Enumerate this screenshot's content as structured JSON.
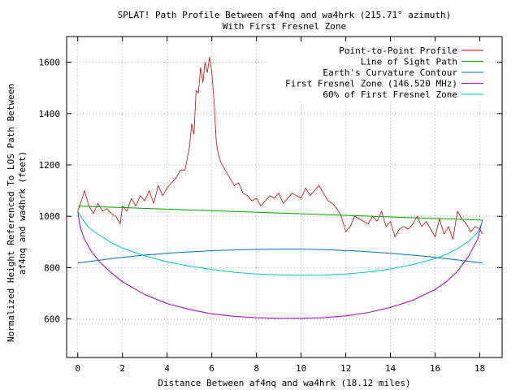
{
  "chart_data": {
    "type": "line",
    "title": "SPLAT! Path Profile Between af4nq and wa4hrk (215.71° azimuth)",
    "subtitle": "With First Fresnel Zone",
    "xlabel": "Distance Between af4nq and wa4hrk (18.12 miles)",
    "ylabel_line1": "Normalized Height Referenced To LOS Path Between",
    "ylabel_line2": "af4nq and wa4hrk (feet)",
    "xlim": [
      -0.5,
      19
    ],
    "ylim": [
      450,
      1700
    ],
    "xticks": [
      0,
      2,
      4,
      6,
      8,
      10,
      12,
      14,
      16,
      18
    ],
    "yticks": [
      600,
      800,
      1000,
      1200,
      1400,
      1600
    ],
    "grid": true,
    "legend_position": "top-right",
    "series": [
      {
        "name": "Point-to-Point Profile",
        "color": "#cc0000",
        "x": [
          0,
          0.2,
          0.3,
          0.5,
          0.7,
          0.9,
          1.1,
          1.3,
          1.5,
          1.7,
          1.9,
          2.0,
          2.2,
          2.4,
          2.6,
          2.8,
          3.0,
          3.2,
          3.4,
          3.6,
          3.8,
          4.0,
          4.2,
          4.4,
          4.6,
          4.8,
          5.0,
          5.1,
          5.2,
          5.3,
          5.4,
          5.5,
          5.6,
          5.7,
          5.8,
          5.9,
          6.0,
          6.1,
          6.2,
          6.3,
          6.4,
          6.6,
          6.8,
          7.0,
          7.2,
          7.4,
          7.6,
          7.8,
          8.0,
          8.2,
          8.4,
          8.6,
          8.8,
          9.0,
          9.2,
          9.4,
          9.6,
          9.8,
          10.0,
          10.2,
          10.4,
          10.6,
          10.8,
          11.0,
          11.2,
          11.4,
          11.6,
          11.8,
          12.0,
          12.2,
          12.4,
          12.6,
          12.8,
          13.0,
          13.2,
          13.4,
          13.6,
          13.8,
          14.0,
          14.2,
          14.4,
          14.6,
          14.8,
          15.0,
          15.2,
          15.4,
          15.6,
          15.8,
          16.0,
          16.2,
          16.4,
          16.6,
          16.8,
          17.0,
          17.2,
          17.4,
          17.6,
          17.8,
          18.0,
          18.12
        ],
        "y": [
          1020,
          1070,
          1100,
          1040,
          1010,
          1050,
          1020,
          1030,
          1010,
          1000,
          970,
          1040,
          1020,
          1070,
          1040,
          1080,
          1060,
          1100,
          1050,
          1120,
          1080,
          1110,
          1130,
          1150,
          1180,
          1180,
          1270,
          1360,
          1320,
          1490,
          1480,
          1580,
          1520,
          1600,
          1560,
          1620,
          1560,
          1450,
          1290,
          1240,
          1210,
          1180,
          1150,
          1120,
          1130,
          1090,
          1080,
          1060,
          1070,
          1040,
          1060,
          1080,
          1070,
          1090,
          1050,
          1070,
          1090,
          1080,
          1070,
          1110,
          1080,
          1100,
          1120,
          1090,
          1060,
          1050,
          1030,
          1000,
          940,
          960,
          1000,
          990,
          980,
          970,
          1000,
          980,
          1020,
          960,
          980,
          920,
          950,
          960,
          950,
          970,
          1000,
          960,
          980,
          950,
          920,
          990,
          930,
          960,
          910,
          1020,
          990,
          970,
          940,
          960,
          950,
          930
        ],
        "stroke": 0.8
      },
      {
        "name": "Line of Sight Path",
        "color": "#00a000",
        "x": [
          0,
          18.12
        ],
        "y": [
          1040,
          985
        ],
        "stroke": 1
      },
      {
        "name": "Earth's Curvature Contour",
        "color": "#0070c0",
        "x": [
          0,
          1.5,
          3,
          4.5,
          6,
          7.5,
          9,
          10,
          11,
          12.5,
          14,
          15.5,
          17,
          18.12
        ],
        "y": [
          818,
          835,
          849,
          859,
          866,
          870,
          872,
          872,
          870,
          865,
          856,
          845,
          830,
          818
        ],
        "stroke": 1
      },
      {
        "name": "First Fresnel Zone (146.520 MHz)",
        "color": "#a000c0",
        "x": [
          0,
          0.1,
          0.3,
          0.6,
          1,
          1.5,
          2,
          3,
          4,
          5,
          6,
          7,
          8,
          9,
          10,
          11,
          12,
          13,
          14,
          15,
          16,
          16.5,
          17,
          17.5,
          17.9,
          18.12
        ],
        "y": [
          1020,
          960,
          910,
          865,
          820,
          780,
          745,
          695,
          660,
          637,
          620,
          610,
          605,
          603,
          603,
          605,
          612,
          625,
          645,
          673,
          715,
          745,
          785,
          845,
          910,
          985
        ],
        "stroke": 1
      },
      {
        "name": "60% of First Fresnel Zone",
        "color": "#00c8c8",
        "x": [
          0,
          0.2,
          0.5,
          1,
          1.5,
          2,
          3,
          4,
          5,
          6,
          7,
          8,
          9,
          10,
          11,
          12,
          13,
          14,
          15,
          16,
          16.5,
          17,
          17.5,
          17.9,
          18.12
        ],
        "y": [
          1020,
          990,
          955,
          925,
          898,
          876,
          846,
          822,
          806,
          793,
          782,
          775,
          772,
          770,
          771,
          775,
          783,
          795,
          812,
          835,
          852,
          874,
          902,
          937,
          980
        ],
        "stroke": 1
      }
    ]
  }
}
